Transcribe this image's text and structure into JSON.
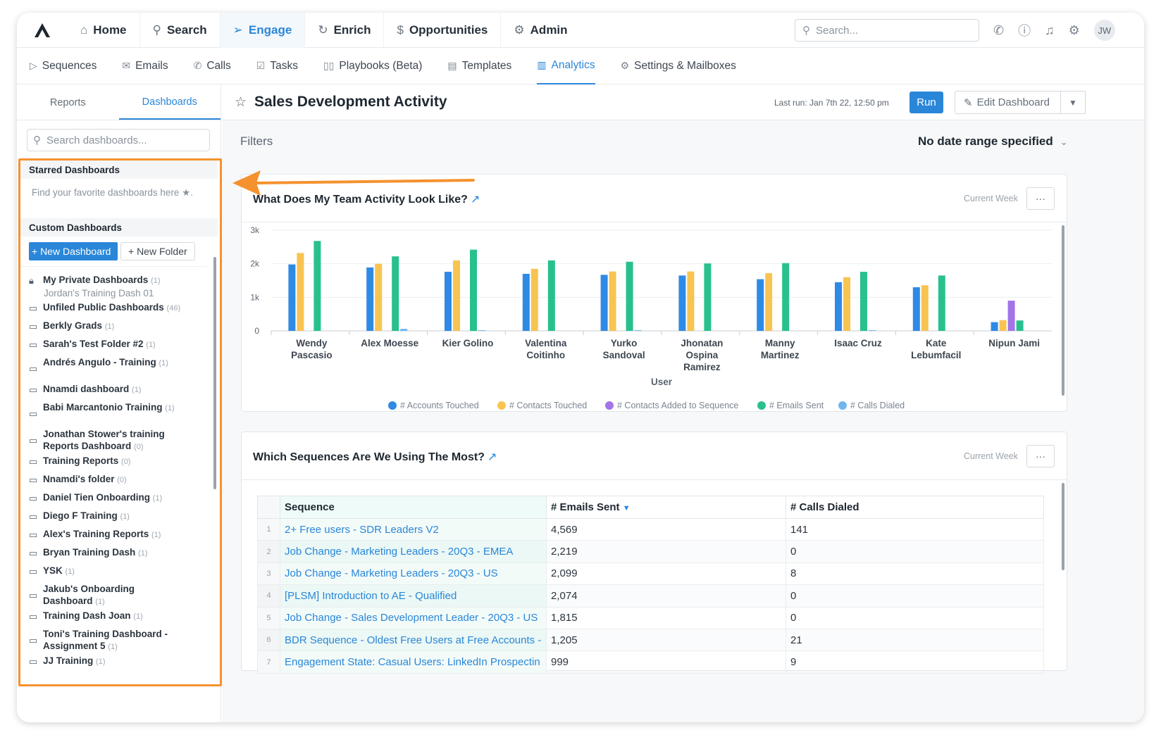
{
  "topnav": {
    "items": [
      {
        "label": "Home",
        "icon": "home-icon"
      },
      {
        "label": "Search",
        "icon": "search-icon"
      },
      {
        "label": "Engage",
        "icon": "send-icon",
        "active": true
      },
      {
        "label": "Enrich",
        "icon": "refresh-icon"
      },
      {
        "label": "Opportunities",
        "icon": "dollar-icon"
      },
      {
        "label": "Admin",
        "icon": "admin-icon"
      }
    ],
    "search_placeholder": "Search...",
    "avatar_initials": "JW"
  },
  "subnav": {
    "items": [
      {
        "label": "Sequences"
      },
      {
        "label": "Emails"
      },
      {
        "label": "Calls"
      },
      {
        "label": "Tasks"
      },
      {
        "label": "Playbooks (Beta)"
      },
      {
        "label": "Templates"
      },
      {
        "label": "Analytics",
        "active": true
      },
      {
        "label": "Settings & Mailboxes"
      }
    ]
  },
  "sidebar": {
    "tabs": [
      "Reports",
      "Dashboards"
    ],
    "search_placeholder": "Search dashboards...",
    "starred_header": "Starred Dashboards",
    "starred_hint": "Find your favorite dashboards here ★.",
    "custom_header": "Custom Dashboards",
    "new_dashboard_label": "+ New Dashboard",
    "new_folder_label": "+ New Folder",
    "private_folder": {
      "name": "My Private Dashboards",
      "count": "(1)"
    },
    "private_child": "Jordan's Training Dash 01",
    "folders": [
      {
        "name": "Unfiled Public Dashboards",
        "count": "(46)"
      },
      {
        "name": "Berkly Grads",
        "count": "(1)"
      },
      {
        "name": "Sarah's Test Folder #2",
        "count": "(1)"
      },
      {
        "name": "Andrés Angulo - Training",
        "count": "(1)",
        "wrap": true
      },
      {
        "name": "Nnamdi dashboard",
        "count": "(1)"
      },
      {
        "name": "Babi Marcantonio Training",
        "count": "(1)",
        "wrap": true
      },
      {
        "name": "Jonathan Stower's training Reports Dashboard",
        "count": "(0)",
        "wrap": true
      },
      {
        "name": "Training Reports",
        "count": "(0)"
      },
      {
        "name": "Nnamdi's folder",
        "count": "(0)"
      },
      {
        "name": "Daniel Tien Onboarding",
        "count": "(1)"
      },
      {
        "name": "Diego F Training",
        "count": "(1)"
      },
      {
        "name": "Alex's Training Reports",
        "count": "(1)"
      },
      {
        "name": "Bryan Training Dash",
        "count": "(1)"
      },
      {
        "name": "YSK",
        "count": "(1)"
      },
      {
        "name": "Jakub's Onboarding Dashboard",
        "count": "(1)",
        "wrap": true
      },
      {
        "name": "Training Dash Joan",
        "count": "(1)"
      },
      {
        "name": "Toni's Training Dashboard - Assignment 5",
        "count": "(1)",
        "wrap": true
      },
      {
        "name": "JJ Training",
        "count": "(1)"
      }
    ]
  },
  "header": {
    "title": "Sales Development Activity",
    "last_run": "Last run: Jan 7th 22, 12:50 pm",
    "run_label": "Run",
    "edit_label": "Edit Dashboard",
    "filters_label": "Filters",
    "date_range": "No date range specified"
  },
  "card1": {
    "title": "What Does My Team Activity Look Like?",
    "period": "Current Week",
    "more": "···"
  },
  "card2": {
    "title": "Which Sequences Are We Using The Most?",
    "period": "Current Week",
    "more": "···"
  },
  "colors": {
    "accent": "#2a86d8",
    "highlight": "#f5922f"
  },
  "chart_data": {
    "type": "bar",
    "title": "What Does My Team Activity Look Like?",
    "xlabel": "User",
    "ylabel": "",
    "ylim": [
      0,
      3000
    ],
    "yticks": [
      "0",
      "1k",
      "2k",
      "3k"
    ],
    "legend_position": "bottom",
    "categories": [
      [
        "Wendy",
        "Pascasio"
      ],
      [
        "Alex Moesse"
      ],
      [
        "Kier Golino"
      ],
      [
        "Valentina",
        "Coitinho"
      ],
      [
        "Yurko",
        "Sandoval"
      ],
      [
        "Jhonatan",
        "Ospina",
        "Ramirez"
      ],
      [
        "Manny",
        "Martinez"
      ],
      [
        "Isaac Cruz"
      ],
      [
        "Kate",
        "Lebumfacil"
      ],
      [
        "Nipun Jami"
      ]
    ],
    "series": [
      {
        "name": "# Accounts Touched",
        "color": "#2f8ae5",
        "values": [
          1980,
          1890,
          1760,
          1700,
          1670,
          1650,
          1540,
          1450,
          1300,
          260
        ]
      },
      {
        "name": "# Contacts Touched",
        "color": "#f8c451",
        "values": [
          2320,
          2000,
          2100,
          1850,
          1770,
          1770,
          1720,
          1600,
          1360,
          320
        ]
      },
      {
        "name": "# Contacts Added to Sequence",
        "color": "#a274e8",
        "values": [
          0,
          0,
          0,
          0,
          0,
          0,
          0,
          0,
          0,
          900
        ]
      },
      {
        "name": "# Emails Sent",
        "color": "#28c18e",
        "values": [
          2680,
          2220,
          2420,
          2100,
          2060,
          2010,
          2020,
          1760,
          1650,
          310
        ]
      },
      {
        "name": "# Calls Dialed",
        "color": "#6fb6ee",
        "values": [
          0,
          60,
          20,
          0,
          20,
          0,
          0,
          20,
          0,
          0
        ]
      }
    ]
  },
  "table": {
    "headers": {
      "sequence": "Sequence",
      "emails": "# Emails Sent",
      "calls": "# Calls Dialed"
    },
    "rows": [
      {
        "n": "1",
        "sequence": "2+ Free users - SDR Leaders V2",
        "emails": "4,569",
        "calls": "141"
      },
      {
        "n": "2",
        "sequence": "Job Change - Marketing Leaders - 20Q3 - EMEA",
        "emails": "2,219",
        "calls": "0"
      },
      {
        "n": "3",
        "sequence": "Job Change - Marketing Leaders - 20Q3 - US",
        "emails": "2,099",
        "calls": "8"
      },
      {
        "n": "4",
        "sequence": "[PLSM] Introduction to AE - Qualified",
        "emails": "2,074",
        "calls": "0"
      },
      {
        "n": "5",
        "sequence": "Job Change - Sales Development Leader - 20Q3 - US",
        "emails": "1,815",
        "calls": "0"
      },
      {
        "n": "6",
        "sequence": "BDR Sequence - Oldest Free Users at Free Accounts -",
        "emails": "1,205",
        "calls": "21"
      },
      {
        "n": "7",
        "sequence": "Engagement State: Casual Users: LinkedIn Prospectin",
        "emails": "999",
        "calls": "9"
      }
    ]
  }
}
